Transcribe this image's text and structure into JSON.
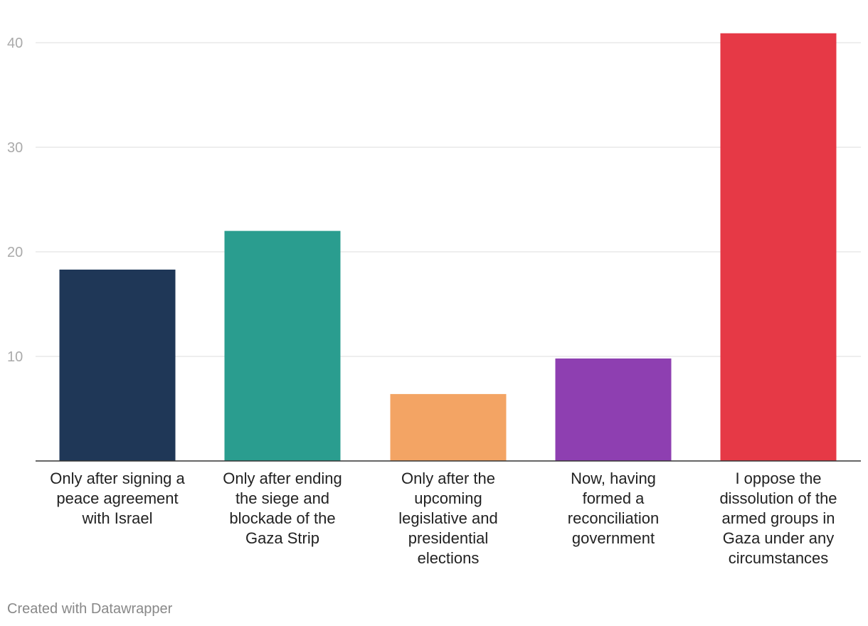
{
  "chart_data": {
    "type": "bar",
    "categories": [
      [
        "Only after signing a",
        "peace agreement",
        "with Israel"
      ],
      [
        "Only after ending",
        "the siege and",
        "blockade of the",
        "Gaza Strip"
      ],
      [
        "Only after the",
        "upcoming",
        "legislative and",
        "presidential",
        "elections"
      ],
      [
        "Now, having",
        "formed a",
        "reconciliation",
        "government"
      ],
      [
        "I oppose the",
        "dissolution of the",
        "armed groups in",
        "Gaza under any",
        "circumstances"
      ]
    ],
    "values": [
      18.3,
      22.0,
      6.4,
      9.8,
      40.9
    ],
    "colors": [
      "#1f3757",
      "#2a9d8f",
      "#f3a464",
      "#8e3fb1",
      "#e63946"
    ],
    "ylim": [
      0,
      40
    ],
    "yticks": [
      10,
      20,
      30,
      40
    ],
    "ytick_labels": [
      "10",
      "20",
      "30",
      "40"
    ],
    "grid": true,
    "legend": false,
    "title": "",
    "xlabel": "",
    "ylabel": ""
  },
  "footer": {
    "credit": "Created with Datawrapper"
  }
}
